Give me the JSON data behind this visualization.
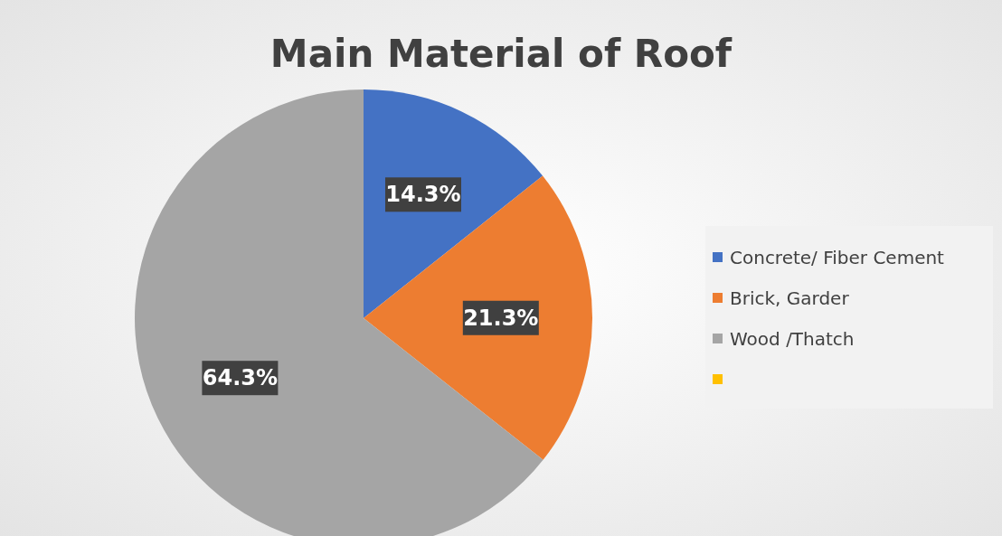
{
  "chart_data": {
    "type": "pie",
    "title": "Main Material of Roof",
    "categories": [
      "Concrete/ Fiber Cement",
      "Brick, Garder",
      "Wood /Thatch",
      null
    ],
    "values": [
      14.3,
      21.3,
      64.3,
      0
    ],
    "colors": [
      "#4472c4",
      "#ed7d31",
      "#a5a5a5",
      "#ffc000"
    ],
    "value_labels": [
      "14.3%",
      "21.3%",
      "64.3%",
      null
    ],
    "legend": "right"
  }
}
